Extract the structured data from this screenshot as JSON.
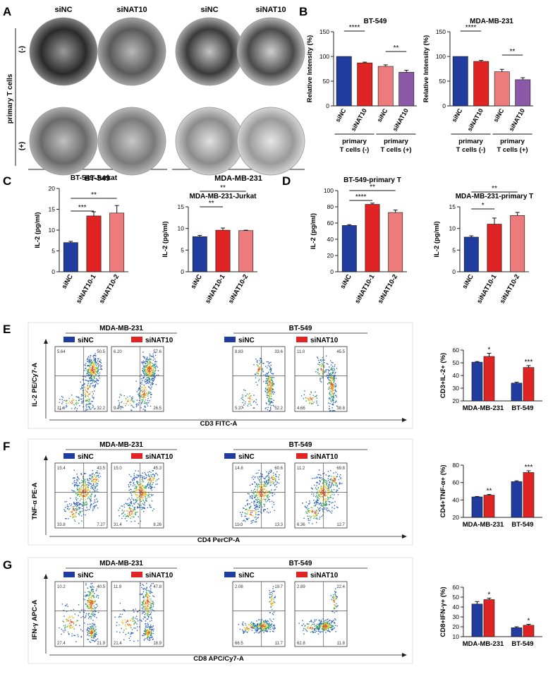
{
  "colors": {
    "blue": "#1f3c9e",
    "red": "#e02424",
    "pink": "#ee7b7b",
    "purple": "#8c59a8",
    "axis": "#222222"
  },
  "panels": {
    "A": {
      "letter": "A",
      "cols": [
        "siNC",
        "siNAT10",
        "siNC",
        "siNAT10"
      ],
      "row_label": "primary T cells",
      "row_minus": "(-)",
      "row_plus": "(+)",
      "groups": [
        "BT-549",
        "MDA-MB-231"
      ]
    },
    "B": {
      "letter": "B"
    },
    "C": {
      "letter": "C"
    },
    "D": {
      "letter": "D"
    },
    "E": {
      "letter": "E",
      "groups": [
        "MDA-MB-231",
        "BT-549"
      ],
      "legend": [
        "siNC",
        "siNAT10"
      ],
      "ylabel": "IL-2 PE/Cy7-A",
      "xlabel": "CD3 FITC-A",
      "quadrants": [
        [
          "5.64",
          "50.5",
          "11.6",
          "32.2"
        ],
        [
          "6.20",
          "57.6",
          "9.70",
          "26.5"
        ],
        [
          "8.83",
          "33.6",
          "5.37",
          "52.2"
        ],
        [
          "11.0",
          "45.5",
          "4.66",
          "38.8"
        ]
      ]
    },
    "F": {
      "letter": "F",
      "groups": [
        "MDA-MB-231",
        "BT-549"
      ],
      "legend": [
        "siNC",
        "siNAT10"
      ],
      "ylabel": "TNF-α PE-A",
      "xlabel": "CD4 PerCP-A",
      "quadrants": [
        [
          "15.4",
          "43.5",
          "33.8",
          "7.27"
        ],
        [
          "15.0",
          "45.3",
          "31.4",
          "8.26"
        ],
        [
          "14.8",
          "60.6",
          "11.3",
          "13.3"
        ],
        [
          "11.2",
          "69.8",
          "6.36",
          "12.7"
        ]
      ]
    },
    "G": {
      "letter": "G",
      "groups": [
        "MDA-MB-231",
        "BT-549"
      ],
      "legend": [
        "siNC",
        "siNAT10"
      ],
      "ylabel": "IFN-γ APC-A",
      "xlabel": "CD8 APC/Cy7-A",
      "quadrants": [
        [
          "10.2",
          "40.5",
          "27.4",
          "21.9"
        ],
        [
          "11.9",
          "47.8",
          "21.4",
          "18.9"
        ],
        [
          "2.08",
          "19.7",
          "66.5",
          "11.7"
        ],
        [
          "2.89",
          "22.4",
          "62.8",
          "11.8"
        ]
      ]
    }
  },
  "chart_data": [
    {
      "id": "B1",
      "type": "bar",
      "title": "BT-549",
      "ylabel": "Relative Intensity (%)",
      "ylim": [
        0,
        150
      ],
      "yticks": [
        0,
        50,
        100,
        150
      ],
      "yticklabels": [
        "0",
        "50",
        "100",
        "150"
      ],
      "categories": [
        "siNC",
        "siNAT10",
        "siNC",
        "siNAT10"
      ],
      "values": [
        100,
        87,
        80,
        68
      ],
      "errors": [
        0,
        1.5,
        3,
        4
      ],
      "colors": [
        "blue",
        "red",
        "pink",
        "purple"
      ],
      "group_labels": [
        "primary\nT cells (-)",
        "primary\nT cells (+)"
      ],
      "sig": [
        {
          "from": 0,
          "to": 1,
          "label": "****"
        },
        {
          "from": 2,
          "to": 3,
          "label": "**"
        }
      ]
    },
    {
      "id": "B2",
      "type": "bar",
      "title": "MDA-MB-231",
      "ylabel": "Relative Intensity (%)",
      "ylim": [
        0,
        150
      ],
      "yticks": [
        0,
        50,
        100,
        150
      ],
      "yticklabels": [
        "0",
        "50",
        "100",
        "150"
      ],
      "categories": [
        "siNC",
        "siNAT10",
        "siNC",
        "siNAT10"
      ],
      "values": [
        100,
        90,
        69,
        53
      ],
      "errors": [
        0,
        2,
        5,
        4
      ],
      "colors": [
        "blue",
        "red",
        "pink",
        "purple"
      ],
      "group_labels": [
        "primary\nT cells (-)",
        "primary\nT cells (+)"
      ],
      "sig": [
        {
          "from": 0,
          "to": 1,
          "label": "****"
        },
        {
          "from": 2,
          "to": 3,
          "label": "**"
        }
      ]
    },
    {
      "id": "C1",
      "type": "bar",
      "title": "BT-549-Jurkat",
      "ylabel": "IL-2 (pg/ml)",
      "ylim": [
        0,
        20
      ],
      "yticks": [
        0,
        5,
        10,
        15,
        20
      ],
      "yticklabels": [
        "0",
        "5",
        "10",
        "15",
        "20"
      ],
      "categories": [
        "siNC",
        "siNAT10-1",
        "siNAT10-2"
      ],
      "values": [
        7,
        13.4,
        14.1
      ],
      "errors": [
        0.3,
        1,
        1.8
      ],
      "colors": [
        "blue",
        "red",
        "pink"
      ],
      "sig": [
        {
          "from": 0,
          "to": 1,
          "label": "***"
        },
        {
          "from": 0,
          "to": 2,
          "label": "**"
        }
      ]
    },
    {
      "id": "C2",
      "type": "bar",
      "title": "MDA-MB-231-Jurkat",
      "ylabel": "IL-2 (pg/ml)",
      "ylim": [
        0,
        15
      ],
      "yticks": [
        0,
        5,
        10,
        15
      ],
      "yticklabels": [
        "0",
        "5",
        "10",
        "15"
      ],
      "categories": [
        "siNC",
        "siNAT10-1",
        "siNAT10-2"
      ],
      "values": [
        8.1,
        9.6,
        9.5
      ],
      "errors": [
        0.3,
        0.5,
        0.1
      ],
      "colors": [
        "blue",
        "red",
        "pink"
      ],
      "sig": [
        {
          "from": 0,
          "to": 1,
          "label": "**"
        },
        {
          "from": 0,
          "to": 2,
          "label": "**"
        }
      ]
    },
    {
      "id": "D1",
      "type": "bar",
      "title": "BT-549-primary T",
      "ylabel": "IL-2 (pg/ml)",
      "ylim": [
        0,
        100
      ],
      "yticks": [
        0,
        20,
        40,
        60,
        80,
        100
      ],
      "yticklabels": [
        "0",
        "20",
        "40",
        "60",
        "80",
        "100"
      ],
      "categories": [
        "siNC",
        "siNAT10-1",
        "siNAT10-2"
      ],
      "values": [
        57,
        83,
        73
      ],
      "errors": [
        1,
        1.5,
        3
      ],
      "colors": [
        "blue",
        "red",
        "pink"
      ],
      "sig": [
        {
          "from": 0,
          "to": 1,
          "label": "****"
        },
        {
          "from": 0,
          "to": 2,
          "label": "**"
        }
      ]
    },
    {
      "id": "D2",
      "type": "bar",
      "title": "MDA-MB-231-primary T",
      "ylabel": "IL-2 (pg/ml)",
      "ylim": [
        0,
        15
      ],
      "yticks": [
        0,
        5,
        10,
        15
      ],
      "yticklabels": [
        "0",
        "5",
        "10",
        "15"
      ],
      "categories": [
        "siNC",
        "siNAT10-1",
        "siNAT10-2"
      ],
      "values": [
        8,
        11,
        13
      ],
      "errors": [
        0.3,
        1.4,
        0.7
      ],
      "colors": [
        "blue",
        "red",
        "pink"
      ],
      "sig": [
        {
          "from": 0,
          "to": 1,
          "label": "*"
        },
        {
          "from": 0,
          "to": 2,
          "label": "**"
        }
      ]
    },
    {
      "id": "E",
      "type": "bar",
      "ylabel": "CD3+IL-2+ (%)",
      "ylim": [
        20,
        60
      ],
      "yticks": [
        20,
        30,
        40,
        50,
        60
      ],
      "yticklabels": [
        "20",
        "30",
        "40",
        "50",
        "60"
      ],
      "categories": [
        "MDA-MB-231",
        "BT-549"
      ],
      "series": [
        {
          "values": [
            50.5,
            34
          ],
          "errors": [
            0.5,
            0.8
          ],
          "color": "blue"
        },
        {
          "values": [
            55,
            46.3
          ],
          "errors": [
            2.5,
            1.5
          ],
          "color": "red"
        }
      ],
      "sig": [
        "*",
        "***"
      ]
    },
    {
      "id": "F",
      "type": "bar",
      "ylabel": "CD4+TNF-α+ (%)",
      "ylim": [
        20,
        80
      ],
      "yticks": [
        20,
        40,
        60,
        80
      ],
      "yticklabels": [
        "20",
        "40",
        "60",
        "80"
      ],
      "categories": [
        "MDA-MB-231",
        "BT-549"
      ],
      "series": [
        {
          "values": [
            43.5,
            61
          ],
          "errors": [
            0.5,
            1
          ],
          "color": "blue"
        },
        {
          "values": [
            45.5,
            71.5
          ],
          "errors": [
            0.8,
            2
          ],
          "color": "red"
        }
      ],
      "sig": [
        "**",
        "***"
      ]
    },
    {
      "id": "G",
      "type": "bar",
      "ylabel": "CD8+IFN-γ+ (%)",
      "ylim": [
        10,
        60
      ],
      "yticks": [
        10,
        20,
        30,
        40,
        50,
        60
      ],
      "yticklabels": [
        "10",
        "20",
        "30",
        "40",
        "50",
        "60"
      ],
      "categories": [
        "MDA-MB-231",
        "BT-549"
      ],
      "series": [
        {
          "values": [
            43,
            19
          ],
          "errors": [
            2.5,
            1
          ],
          "color": "blue"
        },
        {
          "values": [
            47.5,
            21.5
          ],
          "errors": [
            1.5,
            1
          ],
          "color": "red"
        }
      ],
      "sig": [
        "*",
        "*"
      ]
    }
  ]
}
